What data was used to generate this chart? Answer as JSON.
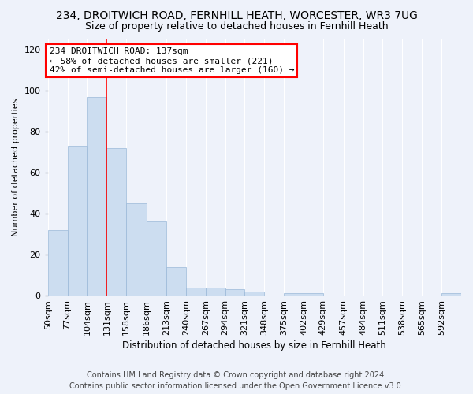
{
  "title1": "234, DROITWICH ROAD, FERNHILL HEATH, WORCESTER, WR3 7UG",
  "title2": "Size of property relative to detached houses in Fernhill Heath",
  "xlabel": "Distribution of detached houses by size in Fernhill Heath",
  "ylabel": "Number of detached properties",
  "bar_color": "#ccddf0",
  "bar_edge_color": "#9ab8d8",
  "vline_color": "red",
  "vline_x": 131,
  "categories": [
    "50sqm",
    "77sqm",
    "104sqm",
    "131sqm",
    "158sqm",
    "186sqm",
    "213sqm",
    "240sqm",
    "267sqm",
    "294sqm",
    "321sqm",
    "348sqm",
    "375sqm",
    "402sqm",
    "429sqm",
    "457sqm",
    "484sqm",
    "511sqm",
    "538sqm",
    "565sqm",
    "592sqm"
  ],
  "bin_edges": [
    50,
    77,
    104,
    131,
    158,
    186,
    213,
    240,
    267,
    294,
    321,
    348,
    375,
    402,
    429,
    457,
    484,
    511,
    538,
    565,
    592,
    619
  ],
  "values": [
    32,
    73,
    97,
    72,
    45,
    36,
    14,
    4,
    4,
    3,
    2,
    0,
    1,
    1,
    0,
    0,
    0,
    0,
    0,
    0,
    1
  ],
  "ylim": [
    0,
    125
  ],
  "yticks": [
    0,
    20,
    40,
    60,
    80,
    100,
    120
  ],
  "annotation_title": "234 DROITWICH ROAD: 137sqm",
  "annotation_line1": "← 58% of detached houses are smaller (221)",
  "annotation_line2": "42% of semi-detached houses are larger (160) →",
  "annotation_box_color": "white",
  "annotation_box_edge": "red",
  "footer1": "Contains HM Land Registry data © Crown copyright and database right 2024.",
  "footer2": "Contains public sector information licensed under the Open Government Licence v3.0.",
  "bg_color": "#eef2fa",
  "title1_fontsize": 10,
  "title2_fontsize": 9,
  "annotation_fontsize": 8,
  "footer_fontsize": 7
}
